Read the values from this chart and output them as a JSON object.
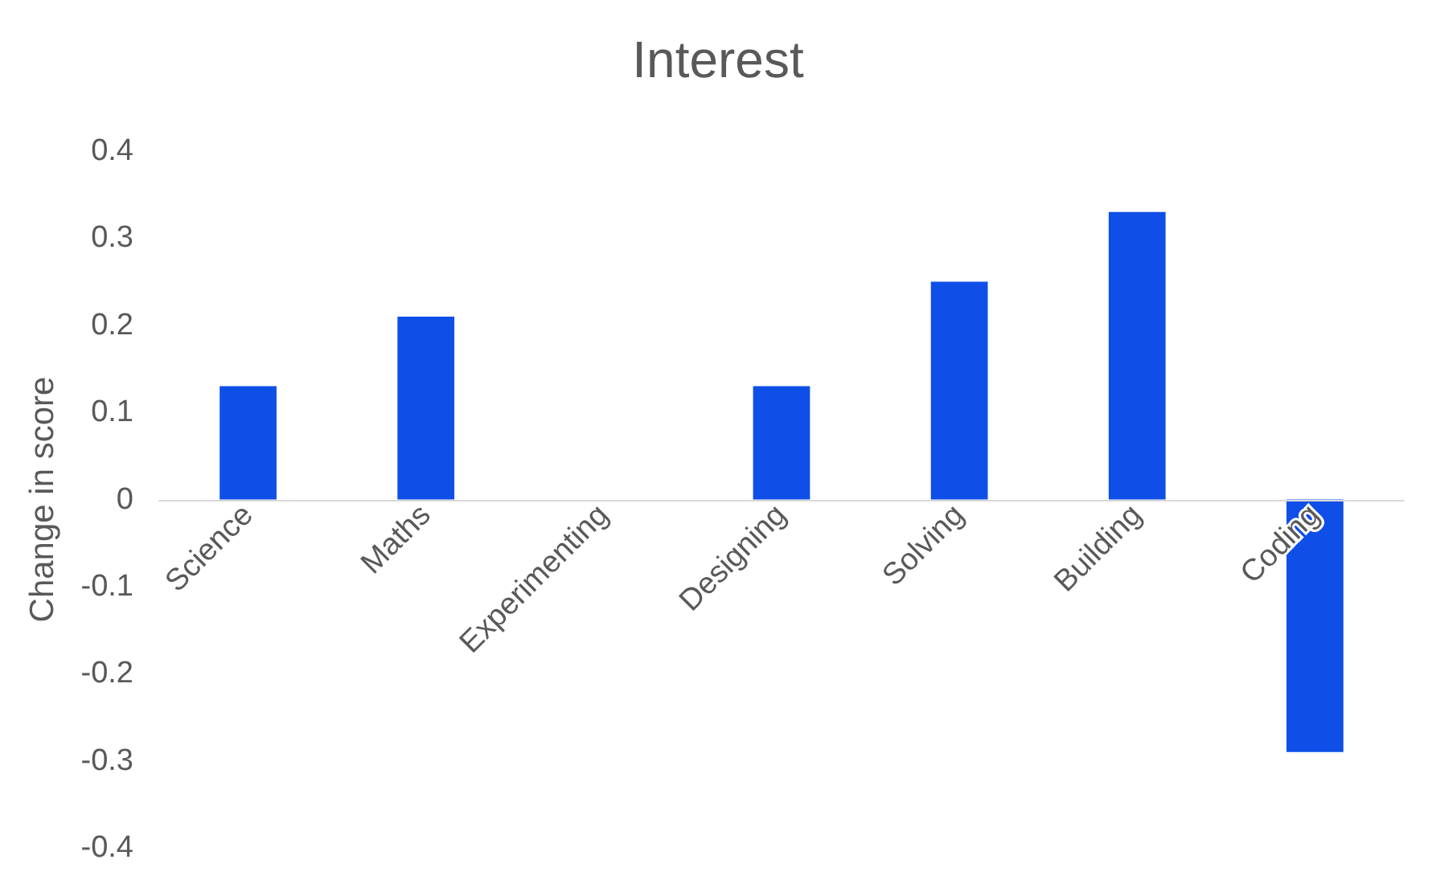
{
  "chart_data": {
    "type": "bar",
    "title": "Interest",
    "ylabel": "Change in score",
    "categories": [
      "Science",
      "Maths",
      "Experimenting",
      "Designing",
      "Solving",
      "Building",
      "Coding"
    ],
    "values": [
      0.13,
      0.21,
      0,
      0.13,
      0.25,
      0.33,
      -0.29
    ],
    "color": "#0f4fe8",
    "ylim": [
      -0.4,
      0.4
    ],
    "yticks": [
      -0.4,
      -0.3,
      -0.2,
      -0.1,
      0,
      0.1,
      0.2,
      0.3,
      0.4
    ]
  }
}
